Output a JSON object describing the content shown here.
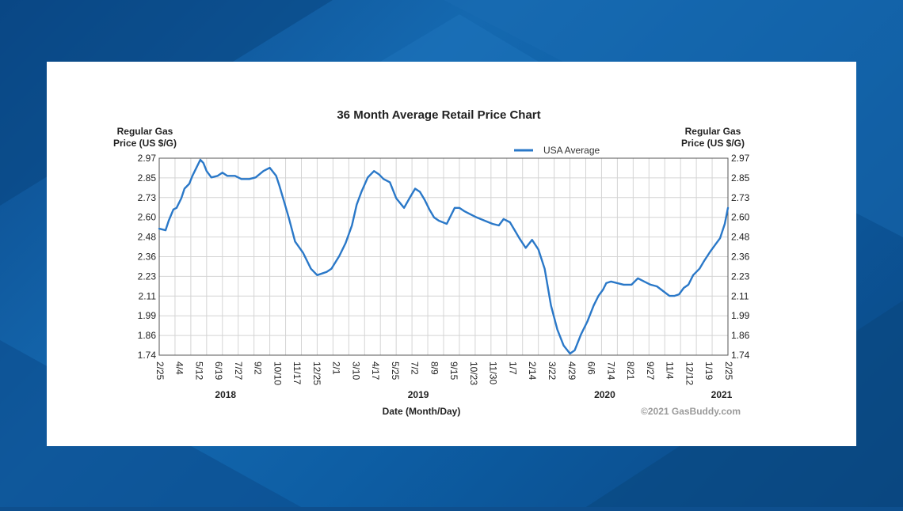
{
  "chart_data": {
    "type": "line",
    "title": "36 Month Average Retail Price Chart",
    "ylabel_left": [
      "Regular Gas",
      "Price (US $/G)"
    ],
    "ylabel_right": [
      "Regular Gas",
      "Price (US $/G)"
    ],
    "xlabel": "Date (Month/Day)",
    "credit": "©2021 GasBuddy.com",
    "legend_position": "top-center",
    "grid": true,
    "colors": {
      "line": "#2a78c8",
      "grid": "#d4d4d4",
      "frame": "#555555"
    },
    "ylim": [
      1.74,
      2.97
    ],
    "yticks": [
      "2.97",
      "2.85",
      "2.73",
      "2.60",
      "2.48",
      "2.36",
      "2.23",
      "2.11",
      "1.99",
      "1.86",
      "1.74"
    ],
    "xlim": [
      0,
      36
    ],
    "xticks": [
      "2/25",
      "4/4",
      "5/12",
      "6/19",
      "7/27",
      "9/2",
      "10/10",
      "11/17",
      "12/25",
      "2/1",
      "3/10",
      "4/17",
      "5/25",
      "7/2",
      "8/9",
      "9/15",
      "10/23",
      "11/30",
      "1/7",
      "2/14",
      "3/22",
      "4/29",
      "6/6",
      "7/14",
      "8/21",
      "9/27",
      "11/4",
      "12/12",
      "1/19",
      "2/25"
    ],
    "years": [
      {
        "label": "2018",
        "x": 4.2
      },
      {
        "label": "2019",
        "x": 16.4
      },
      {
        "label": "2020",
        "x": 28.2
      },
      {
        "label": "2021",
        "x": 35.6
      }
    ],
    "series": [
      {
        "name": "USA Average",
        "x": [
          0,
          0.4,
          0.6,
          0.9,
          1.1,
          1.4,
          1.6,
          1.9,
          2.1,
          2.3,
          2.6,
          2.8,
          3.0,
          3.3,
          3.7,
          4.0,
          4.3,
          4.8,
          5.2,
          5.7,
          6.1,
          6.6,
          7.0,
          7.4,
          7.6,
          7.9,
          8.2,
          8.6,
          9.1,
          9.6,
          10.0,
          10.3,
          10.6,
          10.9,
          11.4,
          11.8,
          12.2,
          12.5,
          12.8,
          13.2,
          13.6,
          13.9,
          14.2,
          14.6,
          15.0,
          15.5,
          15.9,
          16.2,
          16.5,
          16.8,
          17.1,
          17.4,
          17.7,
          18.2,
          18.7,
          19.0,
          19.3,
          19.7,
          20.1,
          20.6,
          21.1,
          21.5,
          21.8,
          22.2,
          22.5,
          22.8,
          23.2,
          23.6,
          24.0,
          24.4,
          24.8,
          25.2,
          25.6,
          26.0,
          26.3,
          26.7,
          27.1,
          27.5,
          27.8,
          28.1,
          28.3,
          28.6,
          29.0,
          29.4,
          29.9,
          30.3,
          30.7,
          31.1,
          31.5,
          31.9,
          32.3,
          32.6,
          32.9,
          33.2,
          33.5,
          33.8,
          34.2,
          34.5,
          34.9,
          35.2,
          35.5,
          35.8,
          36.0
        ],
        "values": [
          2.53,
          2.52,
          2.58,
          2.65,
          2.66,
          2.72,
          2.78,
          2.81,
          2.86,
          2.9,
          2.96,
          2.94,
          2.89,
          2.85,
          2.86,
          2.88,
          2.86,
          2.86,
          2.84,
          2.84,
          2.85,
          2.89,
          2.91,
          2.86,
          2.8,
          2.7,
          2.6,
          2.45,
          2.38,
          2.28,
          2.24,
          2.25,
          2.26,
          2.28,
          2.36,
          2.44,
          2.55,
          2.68,
          2.76,
          2.85,
          2.89,
          2.87,
          2.84,
          2.82,
          2.72,
          2.66,
          2.73,
          2.78,
          2.76,
          2.71,
          2.65,
          2.6,
          2.58,
          2.56,
          2.66,
          2.66,
          2.64,
          2.62,
          2.6,
          2.58,
          2.56,
          2.55,
          2.59,
          2.57,
          2.52,
          2.47,
          2.41,
          2.46,
          2.4,
          2.28,
          2.05,
          1.9,
          1.8,
          1.75,
          1.77,
          1.87,
          1.95,
          2.05,
          2.11,
          2.15,
          2.19,
          2.2,
          2.19,
          2.18,
          2.18,
          2.22,
          2.2,
          2.18,
          2.17,
          2.14,
          2.11,
          2.11,
          2.12,
          2.16,
          2.18,
          2.24,
          2.28,
          2.33,
          2.39,
          2.43,
          2.47,
          2.56,
          2.66
        ]
      }
    ]
  }
}
